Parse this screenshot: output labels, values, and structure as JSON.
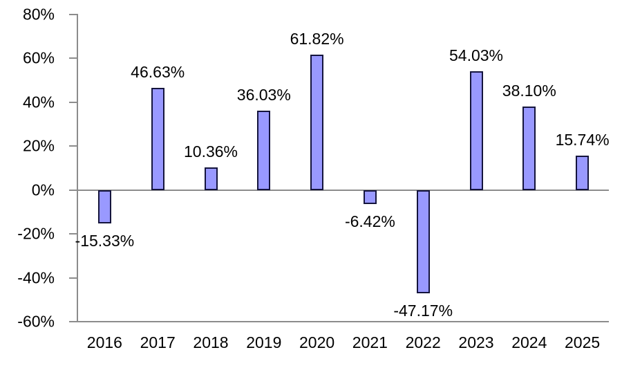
{
  "chart_data": {
    "type": "bar",
    "title": "",
    "xlabel": "",
    "ylabel": "",
    "categories": [
      "2016",
      "2017",
      "2018",
      "2019",
      "2020",
      "2021",
      "2022",
      "2023",
      "2024",
      "2025"
    ],
    "values": [
      -15.33,
      46.63,
      10.36,
      36.03,
      61.82,
      -6.42,
      -47.17,
      54.03,
      38.1,
      15.74
    ],
    "data_labels": [
      "-15.33%",
      "46.63%",
      "10.36%",
      "36.03%",
      "61.82%",
      "-6.42%",
      "-47.17%",
      "54.03%",
      "38.10%",
      "15.74%"
    ],
    "ylim": [
      -60,
      80
    ],
    "ytick_step": 20,
    "ytick_values": [
      80,
      60,
      40,
      20,
      0,
      -20,
      -40,
      -60
    ],
    "ytick_labels": [
      "80%",
      "60%",
      "40%",
      "20%",
      "0%",
      "-20%",
      "-40%",
      "-60%"
    ],
    "grid": false,
    "legend": null,
    "colors": {
      "bar_fill": "#9999FF",
      "bar_border": "#14143C",
      "axis": "#8C8C8C",
      "text": "#000000",
      "background": "#FFFFFF"
    }
  }
}
